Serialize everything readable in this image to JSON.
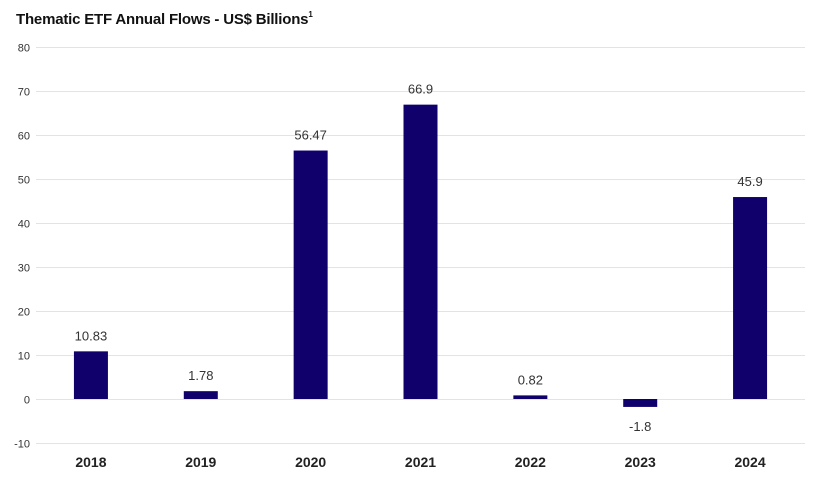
{
  "chart_data": {
    "type": "bar",
    "title": "Thematic ETF Annual Flows - US$ Billions",
    "title_footnote": "1",
    "categories": [
      "2018",
      "2019",
      "2020",
      "2021",
      "2022",
      "2023",
      "2024"
    ],
    "values": [
      10.83,
      1.78,
      56.47,
      66.9,
      0.82,
      -1.8,
      45.9
    ],
    "value_labels": [
      "10.83",
      "1.78",
      "56.47",
      "66.9",
      "0.82",
      "-1.8",
      "45.9"
    ],
    "ylim": [
      -10,
      80
    ],
    "yticks": [
      -10,
      0,
      10,
      20,
      30,
      40,
      50,
      60,
      70,
      80
    ],
    "xlabel": "",
    "ylabel": "",
    "grid": true,
    "legend": "none",
    "bar_color": "#10006b",
    "grid_color": "#e3e3e3"
  }
}
